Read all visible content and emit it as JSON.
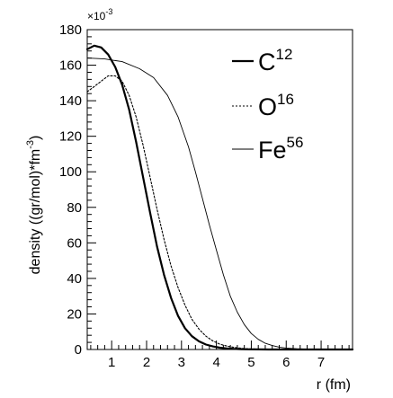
{
  "chart_data": {
    "type": "line",
    "title": "",
    "xlabel": "r (fm)",
    "ylabel": "density ((gr/mol)*fm",
    "ylabel_exponent": "-3",
    "ylabel_suffix": ")",
    "y_multiplier": "×10",
    "y_multiplier_exponent": "-3",
    "xlim": [
      0.3,
      7.9
    ],
    "ylim": [
      0,
      180
    ],
    "x_ticks": [
      1,
      2,
      3,
      4,
      5,
      6,
      7
    ],
    "y_ticks": [
      0,
      20,
      40,
      60,
      80,
      100,
      120,
      140,
      160,
      180
    ],
    "grid": false,
    "legend_position": "top-right",
    "series": [
      {
        "name": "C",
        "name_sup": "12",
        "line_style": "solid-thick",
        "color": "#000000",
        "x": [
          0.3,
          0.5,
          0.7,
          0.9,
          1.1,
          1.3,
          1.5,
          1.7,
          1.9,
          2.1,
          2.3,
          2.5,
          2.7,
          2.9,
          3.1,
          3.3,
          3.5,
          3.7,
          3.9,
          4.1,
          4.3,
          4.5,
          4.7,
          4.9,
          5.2,
          5.5,
          6.0,
          7.0,
          7.9
        ],
        "y": [
          169,
          171,
          170,
          166,
          159,
          149,
          135,
          117,
          97,
          77,
          58,
          42,
          29,
          19,
          12,
          7.5,
          4.6,
          2.8,
          1.7,
          1.0,
          0.6,
          0.35,
          0.2,
          0.12,
          0.05,
          0.02,
          0,
          0,
          0
        ]
      },
      {
        "name": "O",
        "name_sup": "16",
        "line_style": "dotted",
        "color": "#000000",
        "x": [
          0.3,
          0.5,
          0.7,
          0.9,
          1.1,
          1.3,
          1.5,
          1.7,
          1.9,
          2.1,
          2.3,
          2.5,
          2.7,
          2.9,
          3.1,
          3.3,
          3.5,
          3.7,
          3.9,
          4.1,
          4.3,
          4.5,
          4.7,
          4.9,
          5.2,
          5.5,
          6.0,
          7.0,
          7.9
        ],
        "y": [
          145,
          148,
          151,
          154,
          154,
          151,
          143,
          131,
          115,
          97,
          79,
          62,
          47,
          35,
          25,
          17,
          11.5,
          7.5,
          4.8,
          3.0,
          1.9,
          1.2,
          0.7,
          0.4,
          0.2,
          0.1,
          0,
          0,
          0
        ]
      },
      {
        "name": "Fe",
        "name_sup": "56",
        "line_style": "solid-thin",
        "color": "#000000",
        "x": [
          0.3,
          0.8,
          1.3,
          1.8,
          2.2,
          2.6,
          2.9,
          3.2,
          3.4,
          3.6,
          3.8,
          4.0,
          4.2,
          4.4,
          4.6,
          4.8,
          5.0,
          5.2,
          5.4,
          5.6,
          5.8,
          6.0,
          6.3,
          6.7,
          7.2,
          7.9
        ],
        "y": [
          164,
          163.5,
          162,
          158,
          153,
          143,
          131,
          114,
          100,
          85,
          70,
          56,
          42,
          30,
          21,
          14,
          9,
          5.7,
          3.5,
          2.2,
          1.3,
          0.8,
          0.4,
          0.15,
          0.05,
          0
        ]
      }
    ]
  }
}
